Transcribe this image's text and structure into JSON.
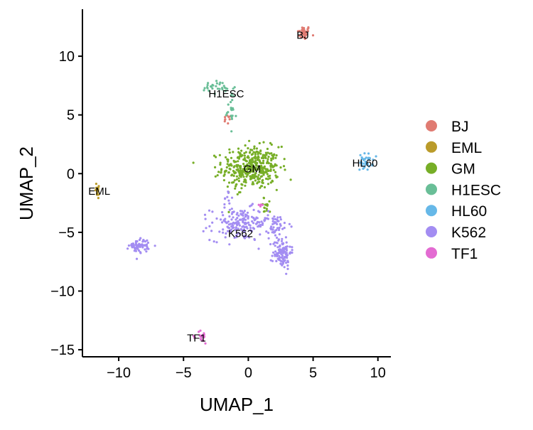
{
  "chart_data": {
    "type": "scatter",
    "xlabel": "UMAP_1",
    "ylabel": "UMAP_2",
    "xlim": [
      -12.8,
      11
    ],
    "ylim": [
      -15.6,
      14
    ],
    "xticks": [
      -10,
      -5,
      0,
      5,
      10
    ],
    "yticks": [
      -15,
      -10,
      -5,
      0,
      5,
      10
    ],
    "xtick_labels": [
      "−10",
      "−5",
      "0",
      "5",
      "10"
    ],
    "ytick_labels": [
      "−15",
      "−10",
      "−5",
      "0",
      "5",
      "10"
    ],
    "grid": false,
    "legend_position": "right",
    "series": [
      {
        "name": "BJ",
        "color": "#E07B72",
        "clusters": [
          {
            "cx": 4.3,
            "cy": 12.0,
            "sx": 0.25,
            "sy": 0.3,
            "n": 40
          },
          {
            "cx": -1.6,
            "cy": 4.6,
            "sx": 0.15,
            "sy": 0.2,
            "n": 10
          }
        ]
      },
      {
        "name": "EML",
        "color": "#BA9B2A",
        "clusters": [
          {
            "cx": -11.6,
            "cy": -1.4,
            "sx": 0.1,
            "sy": 0.4,
            "n": 15
          }
        ]
      },
      {
        "name": "GM",
        "color": "#77AE27",
        "clusters": [
          {
            "cx": 0.2,
            "cy": 0.5,
            "sx": 1.1,
            "sy": 0.9,
            "n": 400
          },
          {
            "cx": 1.4,
            "cy": -2.8,
            "sx": 0.3,
            "sy": 0.4,
            "n": 15
          }
        ]
      },
      {
        "name": "H1ESC",
        "color": "#69BE97",
        "clusters": [
          {
            "cx": -2.4,
            "cy": 7.3,
            "sx": 0.7,
            "sy": 0.3,
            "n": 30
          },
          {
            "cx": -1.3,
            "cy": 5.8,
            "sx": 0.2,
            "sy": 0.8,
            "n": 22
          }
        ]
      },
      {
        "name": "HL60",
        "color": "#66B8E8",
        "clusters": [
          {
            "cx": 9.1,
            "cy": 1.0,
            "sx": 0.25,
            "sy": 0.35,
            "n": 35
          }
        ]
      },
      {
        "name": "K562",
        "color": "#A38DF2",
        "clusters": [
          {
            "cx": -8.4,
            "cy": -6.1,
            "sx": 0.4,
            "sy": 0.3,
            "n": 60
          },
          {
            "cx": -0.7,
            "cy": -4.3,
            "sx": 1.1,
            "sy": 0.7,
            "n": 170
          },
          {
            "cx": 2.6,
            "cy": -6.7,
            "sx": 0.35,
            "sy": 0.7,
            "n": 110
          },
          {
            "cx": 2.0,
            "cy": -4.4,
            "sx": 0.6,
            "sy": 0.5,
            "n": 50
          },
          {
            "cx": -1.6,
            "cy": -2.0,
            "sx": 0.15,
            "sy": 0.3,
            "n": 8
          }
        ]
      },
      {
        "name": "TF1",
        "color": "#E36BD2",
        "clusters": [
          {
            "cx": -3.6,
            "cy": -13.9,
            "sx": 0.2,
            "sy": 0.3,
            "n": 20
          },
          {
            "cx": 1.0,
            "cy": -2.8,
            "sx": 0.15,
            "sy": 0.1,
            "n": 4
          }
        ]
      }
    ],
    "annotations": [
      {
        "text": "BJ",
        "x": 4.2,
        "y": 11.8
      },
      {
        "text": "H1ESC",
        "x": -1.7,
        "y": 6.8
      },
      {
        "text": "GM",
        "x": 0.3,
        "y": 0.4
      },
      {
        "text": "HL60",
        "x": 9.0,
        "y": 0.9
      },
      {
        "text": "EML",
        "x": -11.5,
        "y": -1.5
      },
      {
        "text": "K562",
        "x": -0.6,
        "y": -5.1
      },
      {
        "text": "TF1",
        "x": -4.0,
        "y": -14.0
      }
    ]
  }
}
